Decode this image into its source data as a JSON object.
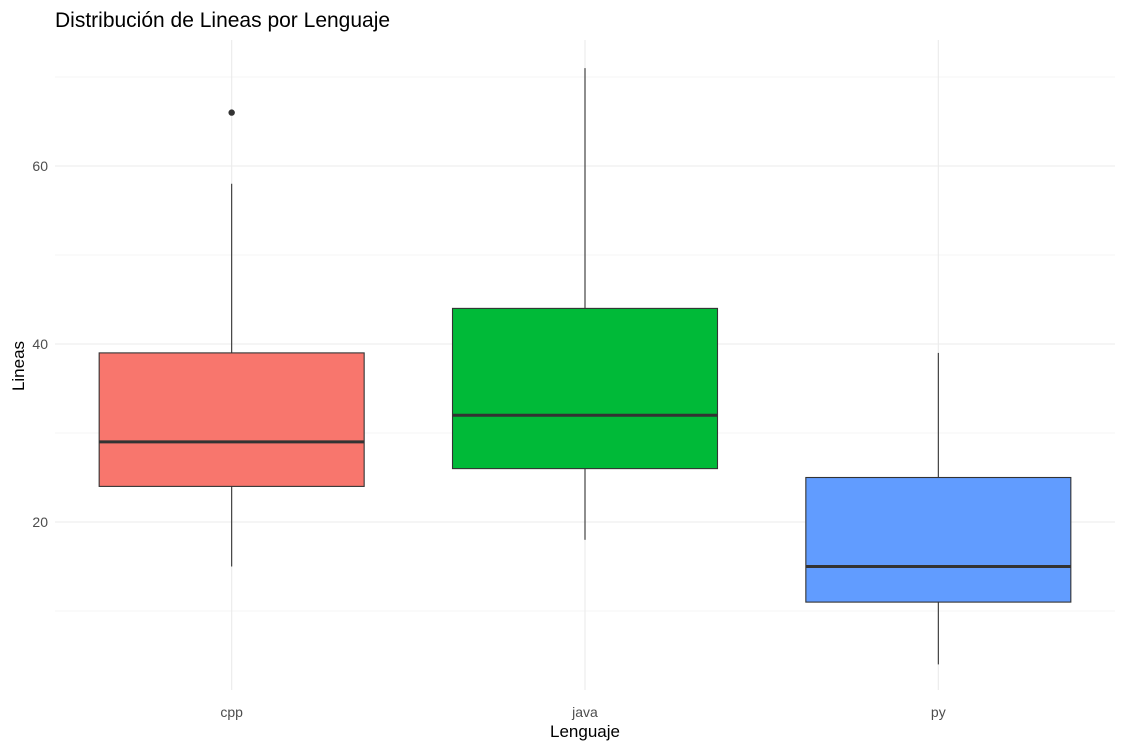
{
  "chart_data": {
    "type": "boxplot",
    "title": "Distribución de Lineas por Lenguaje",
    "xlabel": "Lenguaje",
    "ylabel": "Lineas",
    "categories": [
      "cpp",
      "java",
      "py"
    ],
    "ylim": [
      0,
      73
    ],
    "yticks": [
      20,
      40,
      60
    ],
    "grid": true,
    "legend": "none",
    "boxes": [
      {
        "category": "cpp",
        "min": 15,
        "q1": 24,
        "median": 29,
        "q3": 39,
        "max": 58,
        "outliers": [
          66
        ],
        "color": "#F8766D"
      },
      {
        "category": "java",
        "min": 18,
        "q1": 26,
        "median": 32,
        "q3": 44,
        "max": 71,
        "outliers": [],
        "color": "#00BA38"
      },
      {
        "category": "py",
        "min": 4,
        "q1": 11,
        "median": 15,
        "q3": 25,
        "max": 39,
        "outliers": [],
        "color": "#619CFF"
      }
    ]
  }
}
